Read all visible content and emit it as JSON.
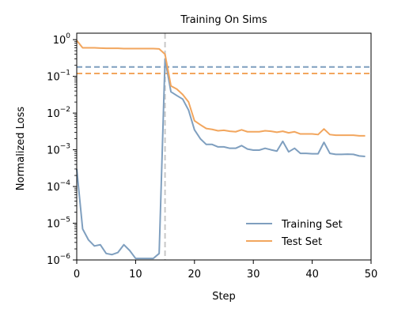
{
  "chart_data": {
    "type": "line",
    "title": "Training On Sims",
    "xlabel": "Step",
    "ylabel": "Normalized Loss",
    "xlim": [
      0,
      50
    ],
    "ylim": [
      1e-06,
      1.5
    ],
    "yscale": "log",
    "grid": false,
    "legend": "bottom-right",
    "x_ticks": [
      0,
      10,
      20,
      30,
      40,
      50
    ],
    "x_tick_labels": [
      "0",
      "10",
      "20",
      "30",
      "40",
      "50"
    ],
    "y_ticks": [
      {
        "value": 1e-06,
        "base": "10",
        "exp": "−6"
      },
      {
        "value": 1e-05,
        "base": "10",
        "exp": "−5"
      },
      {
        "value": 0.0001,
        "base": "10",
        "exp": "−4"
      },
      {
        "value": 0.001,
        "base": "10",
        "exp": "−3"
      },
      {
        "value": 0.01,
        "base": "10",
        "exp": "−2"
      },
      {
        "value": 0.1,
        "base": "10",
        "exp": "−1"
      },
      {
        "value": 1,
        "base": "10",
        "exp": "0"
      }
    ],
    "series": [
      {
        "name": "Training Set",
        "color": "#7f9fbf",
        "x": [
          0,
          1,
          2,
          3,
          4,
          5,
          6,
          7,
          8,
          9,
          10,
          11,
          12,
          13,
          14,
          15,
          16,
          17,
          18,
          19,
          20,
          21,
          22,
          23,
          24,
          25,
          26,
          27,
          28,
          29,
          30,
          31,
          32,
          33,
          34,
          35,
          36,
          37,
          38,
          39,
          40,
          41,
          42,
          43,
          44,
          45,
          46,
          47,
          48,
          49
        ],
        "values": [
          0.0003,
          7e-06,
          3.5e-06,
          2.4e-06,
          2.6e-06,
          1.5e-06,
          1.4e-06,
          1.6e-06,
          2.6e-06,
          1.8e-06,
          1.1e-06,
          1.1e-06,
          1.1e-06,
          1.1e-06,
          1.5e-06,
          0.3,
          0.038,
          0.03,
          0.024,
          0.012,
          0.0035,
          0.002,
          0.0014,
          0.0014,
          0.0012,
          0.0012,
          0.0011,
          0.0011,
          0.0013,
          0.00105,
          0.00098,
          0.00098,
          0.0011,
          0.001,
          0.00092,
          0.0017,
          0.00088,
          0.0011,
          0.0008,
          0.0008,
          0.00078,
          0.00078,
          0.0016,
          0.0008,
          0.00075,
          0.00075,
          0.00076,
          0.00075,
          0.00068,
          0.00066
        ]
      },
      {
        "name": "Test Set",
        "color": "#f2a65e",
        "x": [
          0,
          1,
          2,
          3,
          4,
          5,
          6,
          7,
          8,
          9,
          10,
          11,
          12,
          13,
          14,
          15,
          16,
          17,
          18,
          19,
          20,
          21,
          22,
          23,
          24,
          25,
          26,
          27,
          28,
          29,
          30,
          31,
          32,
          33,
          34,
          35,
          36,
          37,
          38,
          39,
          40,
          41,
          42,
          43,
          44,
          45,
          46,
          47,
          48,
          49
        ],
        "values": [
          0.95,
          0.6,
          0.6,
          0.6,
          0.59,
          0.58,
          0.58,
          0.58,
          0.57,
          0.57,
          0.57,
          0.57,
          0.57,
          0.57,
          0.56,
          0.4,
          0.055,
          0.045,
          0.032,
          0.02,
          0.0062,
          0.0048,
          0.0038,
          0.0036,
          0.0033,
          0.0034,
          0.0032,
          0.0031,
          0.0035,
          0.0031,
          0.0031,
          0.0031,
          0.0033,
          0.0032,
          0.003,
          0.0032,
          0.0029,
          0.0031,
          0.0027,
          0.0027,
          0.0027,
          0.0026,
          0.0037,
          0.0026,
          0.0025,
          0.0025,
          0.0025,
          0.0025,
          0.0024,
          0.0024
        ]
      }
    ],
    "reference_lines": [
      {
        "orientation": "horizontal",
        "value": 0.18,
        "color": "#7f9fbf",
        "style": "dashed"
      },
      {
        "orientation": "horizontal",
        "value": 0.12,
        "color": "#f2a65e",
        "style": "dashed"
      },
      {
        "orientation": "vertical",
        "value": 15,
        "color": "#c8c8c8",
        "style": "dashed"
      }
    ]
  }
}
